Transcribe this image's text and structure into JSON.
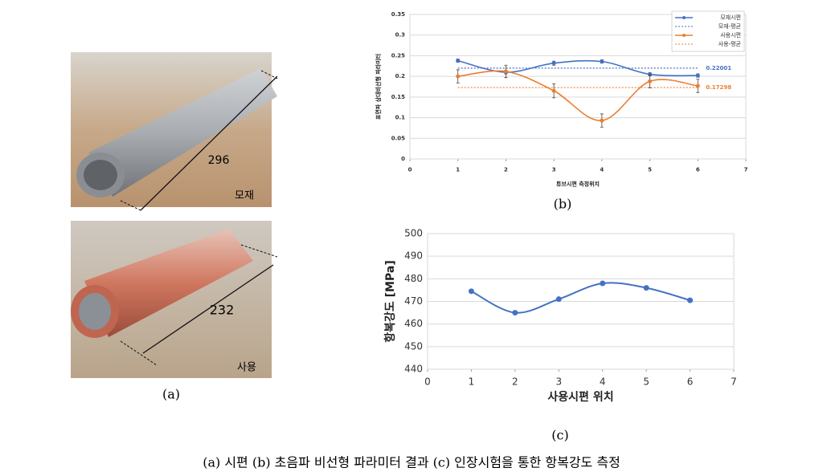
{
  "panel_a": {
    "top_length": "296",
    "top_name": "모재",
    "bottom_length": "232",
    "bottom_name": "사용",
    "caption": "(a)"
  },
  "chart_data": [
    {
      "type": "line",
      "xlabel": "튜브시편 측정위치",
      "ylabel": "표면파 상대비선형 파라미터",
      "xlim": [
        0,
        7
      ],
      "xticks": [
        0,
        1,
        2,
        3,
        4,
        5,
        6,
        7
      ],
      "ylim": [
        0,
        0.35
      ],
      "yticks": [
        0,
        0.05,
        0.1,
        0.15,
        0.2,
        0.25,
        0.3,
        0.35
      ],
      "grid": true,
      "legend": "top-right",
      "x": [
        1,
        2,
        3,
        4,
        5,
        6
      ],
      "series": [
        {
          "name": "모재시편",
          "color": "#4472c4",
          "linestyle": "solid",
          "marker": true,
          "values": [
            0.238,
            0.21,
            0.232,
            0.236,
            0.205,
            0.202
          ],
          "errors": [
            0.004,
            0.004,
            0.005,
            0.004,
            0.004,
            0.004
          ]
        },
        {
          "name": "모재-평균",
          "color": "#4472c4",
          "linestyle": "dotted",
          "marker": false,
          "values": [
            0.22001,
            0.22001,
            0.22001,
            0.22001,
            0.22001,
            0.22001
          ]
        },
        {
          "name": "사용시편",
          "color": "#ed7d31",
          "linestyle": "solid",
          "marker": true,
          "values": [
            0.2,
            0.212,
            0.165,
            0.093,
            0.188,
            0.177
          ],
          "errors": [
            0.016,
            0.015,
            0.017,
            0.016,
            0.016,
            0.016
          ]
        },
        {
          "name": "사용-평균",
          "color": "#ed7d31",
          "linestyle": "dotted",
          "marker": false,
          "values": [
            0.17298,
            0.17298,
            0.17298,
            0.17298,
            0.17298,
            0.17298
          ]
        }
      ],
      "caption": "(b)"
    },
    {
      "type": "line",
      "xlabel": "사용시편 위치",
      "ylabel": "항복강도 [MPa]",
      "xlim": [
        0,
        7
      ],
      "xticks": [
        0,
        1,
        2,
        3,
        4,
        5,
        6,
        7
      ],
      "ylim": [
        440,
        500
      ],
      "yticks": [
        440,
        450,
        460,
        470,
        480,
        490,
        500
      ],
      "grid": true,
      "x": [
        1,
        2,
        3,
        4,
        5,
        6
      ],
      "series": [
        {
          "color": "#4472c4",
          "linestyle": "solid",
          "marker": true,
          "values": [
            474.5,
            465,
            471,
            478,
            476,
            470.5
          ]
        }
      ],
      "caption": "(c)"
    }
  ],
  "figure_caption": "(a) 시편 (b) 초음파 비선형 파라미터 결과 (c) 인장시험을 통한 항복강도 측정"
}
